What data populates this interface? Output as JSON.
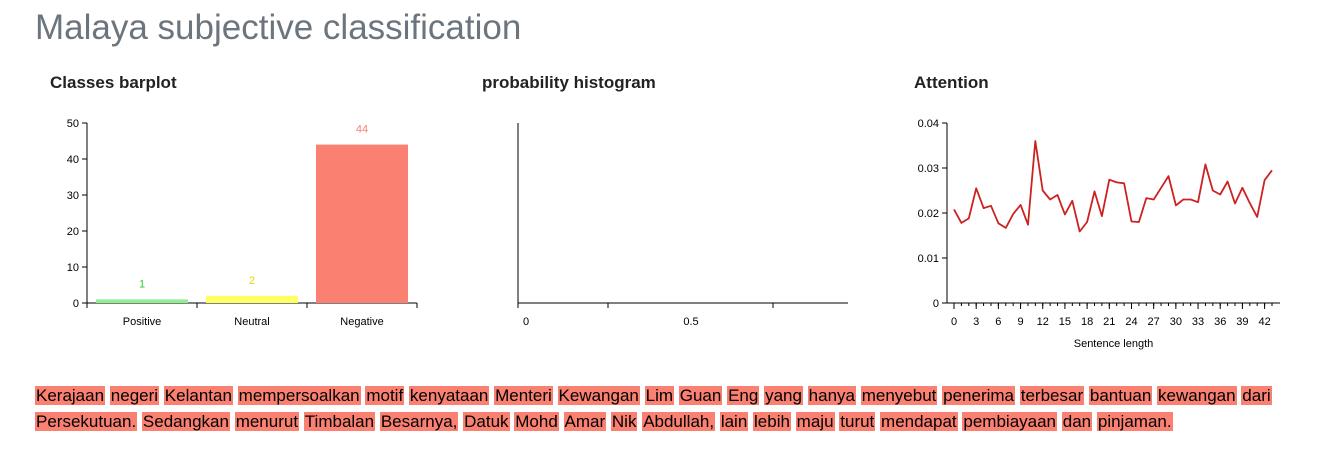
{
  "title": "Malaya subjective classification",
  "panels": {
    "barplot_title": "Classes barplot",
    "histogram_title": "probability histogram",
    "attention_title": "Attention"
  },
  "chart_data": [
    {
      "type": "bar",
      "title": "Classes barplot",
      "categories": [
        "Positive",
        "Neutral",
        "Negative"
      ],
      "values": [
        1,
        2,
        44
      ],
      "data_labels": [
        "1",
        "2",
        "44"
      ],
      "colors": [
        "#90ee90",
        "#ffff66",
        "#fa8072"
      ],
      "label_colors": [
        "#32cd32",
        "#e6d800",
        "#fa8072"
      ],
      "ylim": [
        0,
        50
      ],
      "yticks": [
        0,
        10,
        20,
        30,
        40,
        50
      ]
    },
    {
      "type": "bar",
      "title": "probability histogram",
      "values": [],
      "xticks": [
        "0",
        "0.5"
      ]
    },
    {
      "type": "line",
      "title": "Attention",
      "xlabel": "Sentence length",
      "ylim": [
        0,
        0.04
      ],
      "yticks": [
        "0",
        "0.01",
        "0.02",
        "0.03",
        "0.04"
      ],
      "xticks": [
        0,
        3,
        6,
        9,
        12,
        15,
        18,
        21,
        24,
        27,
        30,
        33,
        36,
        39,
        42
      ],
      "xlim": [
        0,
        43
      ],
      "color": "#cc2222",
      "values": [
        0.0208,
        0.0178,
        0.0188,
        0.0255,
        0.0211,
        0.0216,
        0.0177,
        0.0167,
        0.0198,
        0.0218,
        0.0174,
        0.036,
        0.025,
        0.023,
        0.024,
        0.0197,
        0.0227,
        0.0159,
        0.018,
        0.0248,
        0.0193,
        0.0274,
        0.0268,
        0.0266,
        0.0181,
        0.018,
        0.0233,
        0.023,
        0.0256,
        0.0282,
        0.0217,
        0.023,
        0.023,
        0.0224,
        0.0308,
        0.025,
        0.0241,
        0.027,
        0.0221,
        0.0256,
        0.0222,
        0.0191,
        0.0273,
        0.0295
      ]
    }
  ],
  "sentence_words": [
    "Kerajaan",
    "negeri",
    "Kelantan",
    "mempersoalkan",
    "motif",
    "kenyataan",
    "Menteri",
    "Kewangan",
    "Lim",
    "Guan",
    "Eng",
    "yang",
    "hanya",
    "menyebut",
    "penerima",
    "terbesar",
    "bantuan",
    "kewangan",
    "dari",
    "Persekutuan.",
    "Sedangkan",
    "menurut",
    "Timbalan",
    "Besarnya,",
    "Datuk",
    "Mohd",
    "Amar",
    "Nik",
    "Abdullah,",
    "lain",
    "lebih",
    "maju",
    "turut",
    "mendapat",
    "pembiayaan",
    "dan",
    "pinjaman."
  ],
  "word_highlight_color": "#fa8072"
}
